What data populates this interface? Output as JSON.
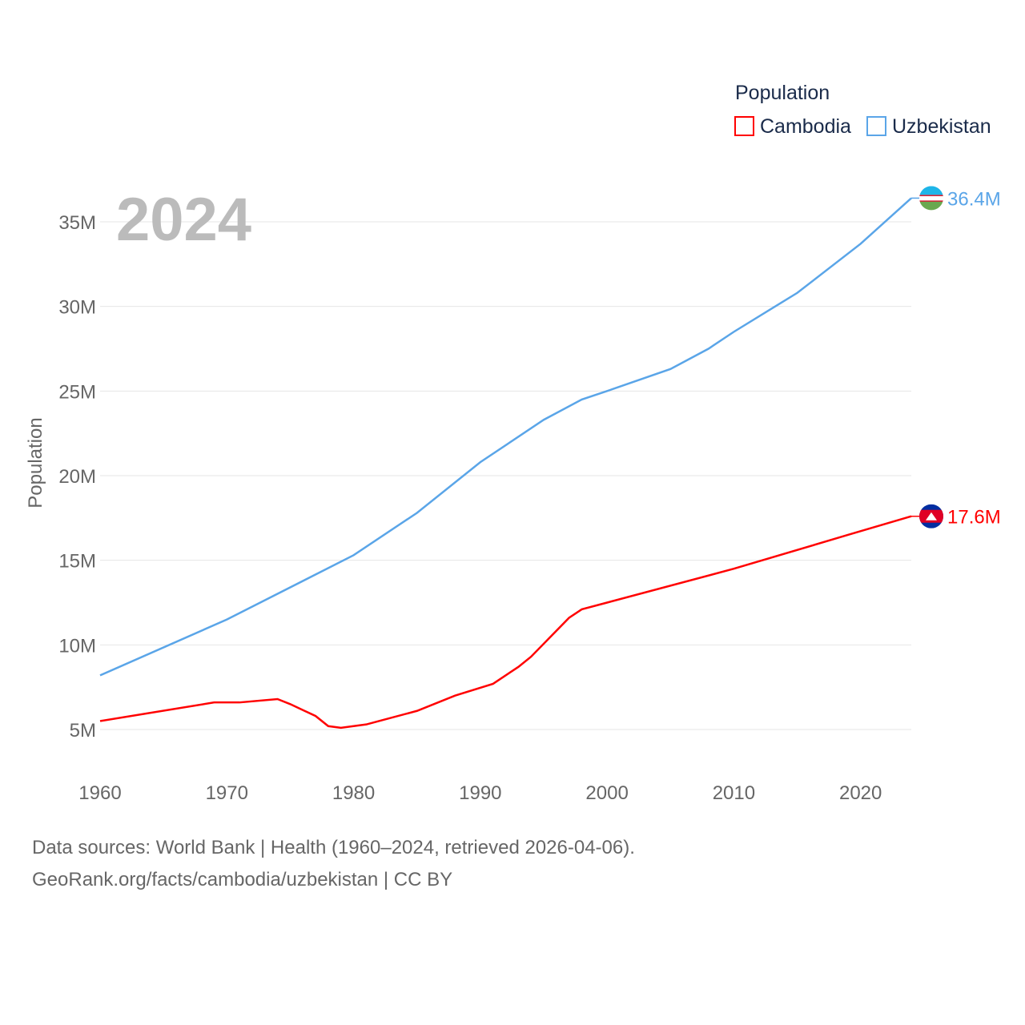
{
  "chart_data": {
    "type": "line",
    "year_label": "2024",
    "ylabel": "Population",
    "ylim": [
      5,
      35
    ],
    "yticks": [
      {
        "v": 5,
        "label": "5M"
      },
      {
        "v": 10,
        "label": "10M"
      },
      {
        "v": 15,
        "label": "15M"
      },
      {
        "v": 20,
        "label": "20M"
      },
      {
        "v": 25,
        "label": "25M"
      },
      {
        "v": 30,
        "label": "30M"
      },
      {
        "v": 35,
        "label": "35M"
      }
    ],
    "xticks": [
      "1960",
      "1970",
      "1980",
      "1990",
      "2000",
      "2010",
      "2020"
    ],
    "xlim": [
      1960,
      2024
    ],
    "legend": {
      "title": "Population",
      "position": "top-right"
    },
    "series": [
      {
        "name": "Cambodia",
        "color": "#ff0000",
        "end_label": "17.6M",
        "x": [
          1960,
          1969,
          1971,
          1974,
          1975,
          1977,
          1978,
          1979,
          1981,
          1982,
          1985,
          1988,
          1991,
          1993,
          1994,
          1997,
          1998,
          2000,
          2010,
          2019,
          2024
        ],
        "y": [
          5.5,
          6.6,
          6.6,
          6.8,
          6.5,
          5.8,
          5.2,
          5.1,
          5.3,
          5.5,
          6.1,
          7.0,
          7.7,
          8.7,
          9.3,
          11.6,
          12.1,
          12.5,
          14.5,
          16.5,
          17.6
        ]
      },
      {
        "name": "Uzbekistan",
        "color": "#5aa5e8",
        "end_label": "36.4M",
        "x": [
          1960,
          1970,
          1980,
          1985,
          1990,
          1995,
          1998,
          2000,
          2005,
          2008,
          2010,
          2015,
          2020,
          2024
        ],
        "y": [
          8.2,
          11.5,
          15.3,
          17.8,
          20.8,
          23.3,
          24.5,
          25.0,
          26.3,
          27.5,
          28.5,
          30.8,
          33.7,
          36.4
        ]
      }
    ]
  },
  "footer": {
    "line1": "Data sources: World Bank | Health (1960–2024, retrieved 2026-04-06).",
    "line2": "GeoRank.org/facts/cambodia/uzbekistan | CC BY"
  }
}
